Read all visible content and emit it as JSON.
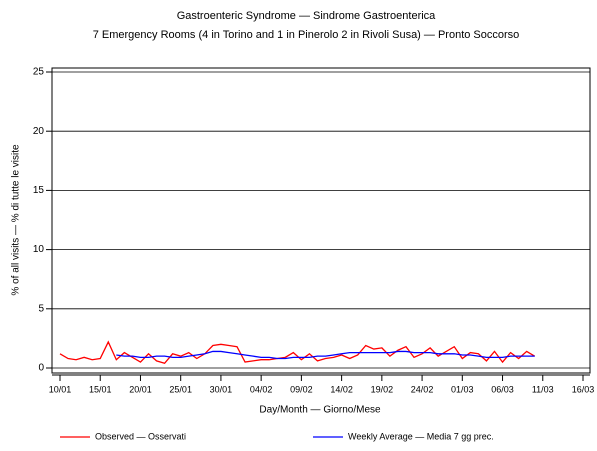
{
  "chart_data": {
    "type": "line",
    "title": "Gastroenteric Syndrome — Sindrome Gastroenterica",
    "subtitle": "7 Emergency Rooms (4 in Torino and 1 in Pinerolo 2 in Rivoli Susa) — Pronto Soccorso",
    "x_label": "Day/Month — Giorno/Mese",
    "y_label": "% of all visits — % di tutte le visite",
    "categories": [
      "10/01",
      null,
      null,
      null,
      null,
      "15/01",
      null,
      null,
      null,
      null,
      "20/01",
      null,
      null,
      null,
      null,
      "25/01",
      null,
      null,
      null,
      null,
      "30/01",
      null,
      null,
      null,
      null,
      "04/02",
      null,
      null,
      null,
      null,
      "09/02",
      null,
      null,
      null,
      null,
      "14/02",
      null,
      null,
      null,
      null,
      "19/02",
      null,
      null,
      null,
      null,
      "24/02",
      null,
      null,
      null,
      null,
      "01/03",
      null,
      null,
      null,
      null,
      "06/03",
      null,
      null,
      null,
      null,
      "11/03",
      null,
      null,
      null,
      null,
      "16/03"
    ],
    "ylim": [
      0,
      25
    ],
    "yticks": [
      0,
      5,
      10,
      15,
      20,
      25
    ],
    "grid": true,
    "series": [
      {
        "name": "Observed — Osservati",
        "color": "#ff0000",
        "values": [
          1.2,
          0.8,
          0.7,
          0.9,
          0.7,
          0.8,
          2.2,
          0.7,
          1.3,
          0.9,
          0.5,
          1.2,
          0.6,
          0.4,
          1.2,
          1.0,
          1.3,
          0.8,
          1.2,
          1.9,
          2.0,
          1.9,
          1.8,
          0.5,
          0.6,
          0.7,
          0.7,
          0.8,
          0.9,
          1.3,
          0.7,
          1.2,
          0.6,
          0.8,
          0.9,
          1.1,
          0.8,
          1.1,
          1.9,
          1.6,
          1.7,
          1.0,
          1.5,
          1.8,
          0.9,
          1.2,
          1.7,
          1.0,
          1.4,
          1.8,
          0.8,
          1.3,
          1.2,
          0.6,
          1.4,
          0.5,
          1.3,
          0.8,
          1.4,
          1.0,
          null,
          null,
          null,
          null,
          null,
          null
        ]
      },
      {
        "name": "Weekly Average — Media 7 gg prec.",
        "color": "#0000ff",
        "values": [
          null,
          null,
          null,
          null,
          null,
          null,
          null,
          1.1,
          1.0,
          1.0,
          0.9,
          0.9,
          1.0,
          1.0,
          0.9,
          0.9,
          1.0,
          1.1,
          1.2,
          1.4,
          1.4,
          1.3,
          1.2,
          1.1,
          1.0,
          0.9,
          0.9,
          0.8,
          0.8,
          0.9,
          0.9,
          0.9,
          1.0,
          1.0,
          1.1,
          1.2,
          1.3,
          1.3,
          1.3,
          1.3,
          1.3,
          1.3,
          1.4,
          1.4,
          1.3,
          1.3,
          1.3,
          1.2,
          1.2,
          1.2,
          1.1,
          1.1,
          1.0,
          0.9,
          0.9,
          0.9,
          1.0,
          1.0,
          1.0,
          1.0,
          null,
          null,
          null,
          null,
          null,
          null
        ]
      }
    ]
  }
}
